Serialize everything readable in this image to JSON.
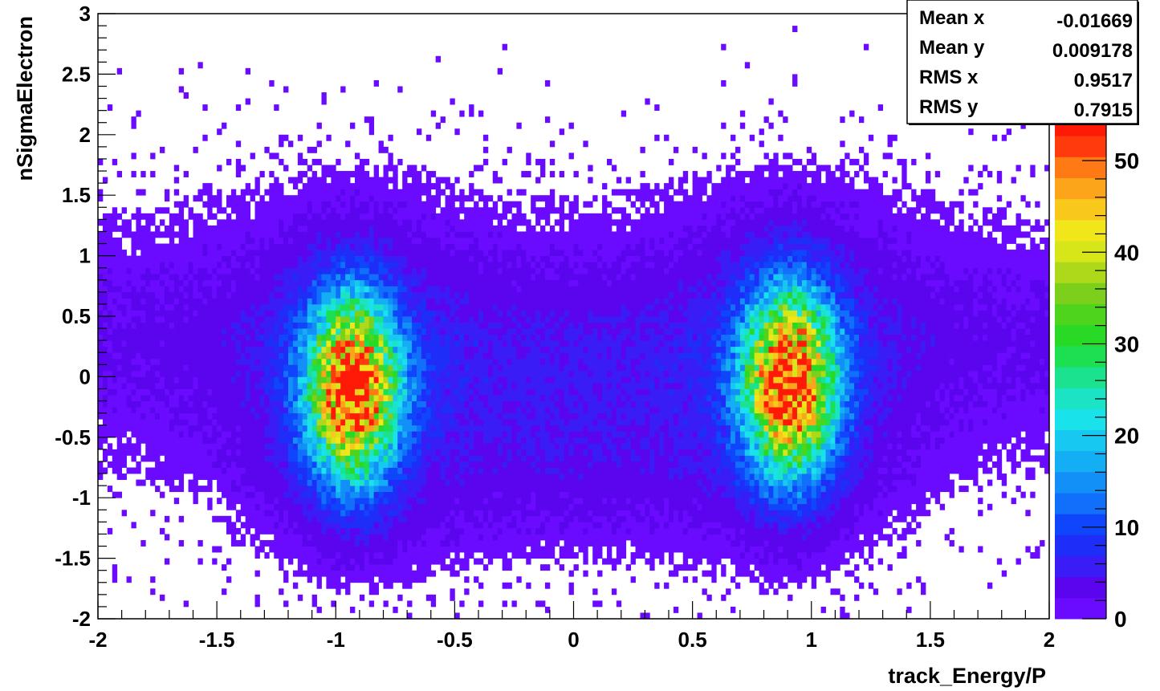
{
  "chart_data": {
    "type": "heatmap",
    "title": "",
    "xlabel": "track_Energy/P",
    "ylabel": "nSigmaElectron",
    "xlim": [
      -2,
      2
    ],
    "ylim": [
      -2,
      3
    ],
    "zlim": [
      0,
      55
    ],
    "x_ticks": [
      "-2",
      "-1.5",
      "-1",
      "-0.5",
      "0",
      "0.5",
      "1",
      "1.5",
      "2"
    ],
    "y_ticks": [
      "-2",
      "-1.5",
      "-1",
      "-0.5",
      "0",
      "0.5",
      "1",
      "1.5",
      "2",
      "2.5",
      "3"
    ],
    "z_ticks": [
      "0",
      "10",
      "20",
      "30",
      "40",
      "50"
    ],
    "bins": {
      "nx": 200,
      "ny": 100
    },
    "clusters": [
      {
        "name": "",
        "x_center": -0.93,
        "y_center": -0.1,
        "x_sigma": 0.13,
        "y_sigma": 0.5,
        "peak_count": 50
      },
      {
        "name": "",
        "x_center": 0.91,
        "y_center": -0.05,
        "x_sigma": 0.13,
        "y_sigma": 0.5,
        "peak_count": 52
      }
    ],
    "background_level": 3,
    "palette": [
      "#6a0bff",
      "#5a05ee",
      "#3a1cf6",
      "#1e2ef8",
      "#0f46fb",
      "#1170fb",
      "#138ff8",
      "#14aef4",
      "#17c9f0",
      "#19e2ea",
      "#1ae4c4",
      "#1ae28f",
      "#1cdf52",
      "#28d926",
      "#4fd41d",
      "#7ccf1a",
      "#aed81a",
      "#d6e618",
      "#f0e61a",
      "#f8c81a",
      "#fca41a",
      "#ff7a14",
      "#ff3a0c",
      "#ff1a08"
    ],
    "stats": [
      {
        "label": "Mean x",
        "value": "-0.01669"
      },
      {
        "label": "Mean y",
        "value": "0.009178"
      },
      {
        "label": "RMS x",
        "value": "0.9517"
      },
      {
        "label": "RMS y",
        "value": "0.7915"
      }
    ]
  }
}
